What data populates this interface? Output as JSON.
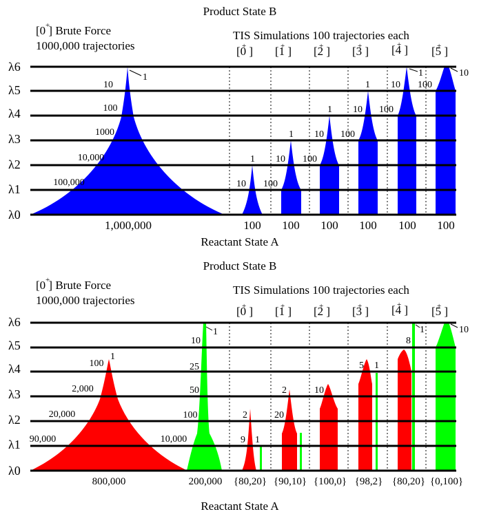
{
  "colors": {
    "blue": "#0000ff",
    "red": "#ff0000",
    "green": "#00ff00",
    "line": "#000000"
  },
  "lambda_labels": [
    "λ6",
    "λ5",
    "λ4",
    "λ3",
    "λ2",
    "λ1",
    "λ0"
  ],
  "panel_top": {
    "product_label": "Product State B",
    "reactant_label": "Reactant State A",
    "bf_title_sup": "+",
    "bf_title": "[0 ] Brute Force",
    "bf_subtitle": "1000,000 trajectories",
    "tis_title": "TIS Simulations 100 trajectories each",
    "ensembles": [
      "[0 ]",
      "[1 ]",
      "[2 ]",
      "[3 ]",
      "[4 ]",
      "[5 ]"
    ],
    "bf_counts": [
      "1",
      "10",
      "100",
      "1000",
      "10,000",
      "100,000"
    ],
    "bf_bottom": "1,000,000",
    "tis_bottom": [
      "100",
      "100",
      "100",
      "100",
      "100",
      "100"
    ],
    "tis_counts": [
      [
        "10",
        "1"
      ],
      [
        "100",
        "10",
        "1"
      ],
      [
        "100",
        "10",
        "1"
      ],
      [
        "100",
        "10",
        "1"
      ],
      [
        "100",
        "10",
        "1"
      ],
      [
        "100",
        "10"
      ]
    ]
  },
  "panel_bottom": {
    "product_label": "Product State B",
    "reactant_label": "Reactant State A",
    "bf_title": "[0 ] Brute Force",
    "bf_subtitle": "1000,000 trajectories",
    "tis_title": "TIS Simulations 100 trajectories each",
    "ensembles": [
      "[0 ]",
      "[1 ]",
      "[2 ]",
      "[3 ]",
      "[4 ]",
      "[5 ]"
    ],
    "red_counts": [
      "1",
      "100",
      "2,000",
      "20,000",
      "90,000"
    ],
    "red_bottom": "800,000",
    "green_counts": [
      "1",
      "10",
      "25",
      "50",
      "100",
      "10,000"
    ],
    "green_bottom": "200,000",
    "tis_bottom": [
      "{80,20}",
      "{90,10}",
      "{100,0}",
      "{98,2}",
      "{80,20}",
      "{0,100}"
    ],
    "tis_labels": [
      [
        "2",
        "9",
        "1"
      ],
      [
        "2",
        "20"
      ],
      [
        "10"
      ],
      [
        "5",
        "1"
      ],
      [
        "8",
        "1"
      ],
      [
        "10"
      ]
    ]
  }
}
